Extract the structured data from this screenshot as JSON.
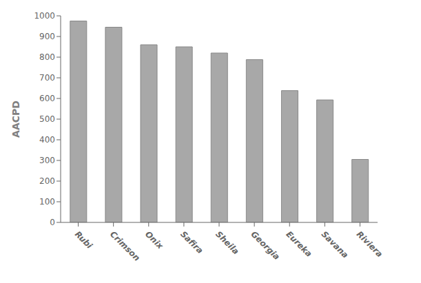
{
  "chart_data": {
    "type": "bar",
    "ylabel": "AACPD",
    "categories": [
      "Rubi",
      "Crimson",
      "Onix",
      "Safira",
      "Sheila",
      "Georgia",
      "Eureka",
      "Savana",
      "Riviera"
    ],
    "values": [
      975,
      945,
      860,
      850,
      820,
      788,
      638,
      593,
      305
    ],
    "color": "#a8a8a8",
    "ylim": [
      0,
      1000
    ],
    "yticks": [
      0,
      100,
      200,
      300,
      400,
      500,
      600,
      700,
      800,
      900,
      1000
    ],
    "grid": false
  }
}
